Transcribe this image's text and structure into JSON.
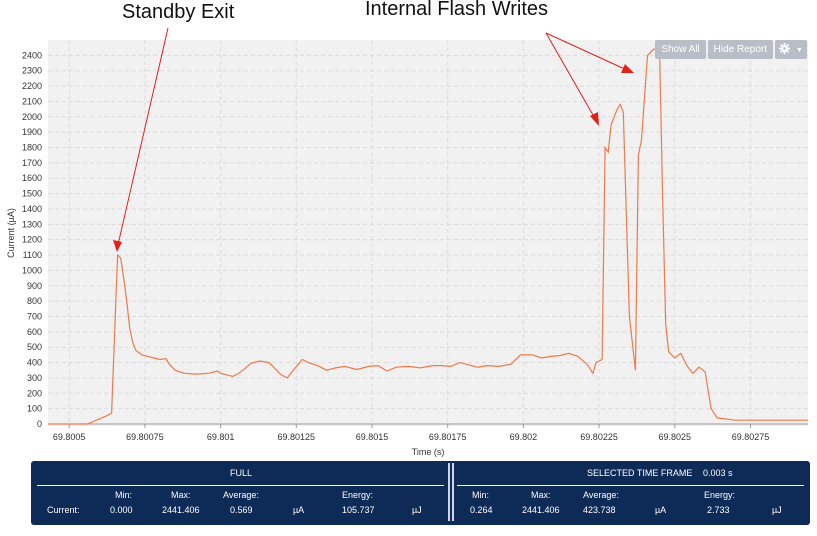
{
  "annotations": {
    "standby_exit": "Standby Exit",
    "flash_writes": "Internal Flash Writes"
  },
  "toolbar": {
    "show_all": "Show All",
    "hide_report": "Hide Report",
    "settings_icon": "gear-icon",
    "settings_caret": "▼"
  },
  "chart_data": {
    "type": "line",
    "xlabel": "Time (s)",
    "ylabel": "Current (µA)",
    "xlim": [
      69.80043,
      69.80294
    ],
    "ylim": [
      0,
      2500
    ],
    "x_ticks": [
      "69.8005",
      "69.80075",
      "69.801",
      "69.80125",
      "69.8015",
      "69.80175",
      "69.802",
      "69.80225",
      "69.8025",
      "69.80275"
    ],
    "y_ticks": [
      "0",
      "100",
      "200",
      "300",
      "400",
      "500",
      "600",
      "700",
      "800",
      "900",
      "1000",
      "1100",
      "1200",
      "1300",
      "1400",
      "1500",
      "1600",
      "1700",
      "1800",
      "1900",
      "2000",
      "2100",
      "2200",
      "2300",
      "2400"
    ],
    "grid": true,
    "line_color": "#f07a4a",
    "series": [
      {
        "points": [
          [
            69.80043,
            0
          ],
          [
            69.80056,
            0
          ],
          [
            69.80062,
            50
          ],
          [
            69.80064,
            70
          ],
          [
            69.80066,
            1100
          ],
          [
            69.80067,
            1080
          ],
          [
            69.80068,
            950
          ],
          [
            69.80069,
            800
          ],
          [
            69.8007,
            620
          ],
          [
            69.80071,
            530
          ],
          [
            69.80072,
            480
          ],
          [
            69.80074,
            450
          ],
          [
            69.80076,
            440
          ],
          [
            69.80078,
            430
          ],
          [
            69.8008,
            420
          ],
          [
            69.80082,
            425
          ],
          [
            69.80083,
            390
          ],
          [
            69.80085,
            350
          ],
          [
            69.80088,
            330
          ],
          [
            69.80092,
            325
          ],
          [
            69.80096,
            330
          ],
          [
            69.80099,
            345
          ],
          [
            69.801,
            330
          ],
          [
            69.80102,
            320
          ],
          [
            69.80104,
            310
          ],
          [
            69.80106,
            330
          ],
          [
            69.80108,
            360
          ],
          [
            69.8011,
            395
          ],
          [
            69.80113,
            410
          ],
          [
            69.80116,
            400
          ],
          [
            69.80118,
            360
          ],
          [
            69.8012,
            320
          ],
          [
            69.80122,
            300
          ],
          [
            69.80124,
            350
          ],
          [
            69.80127,
            420
          ],
          [
            69.80129,
            400
          ],
          [
            69.80132,
            380
          ],
          [
            69.80135,
            350
          ],
          [
            69.80138,
            365
          ],
          [
            69.80141,
            375
          ],
          [
            69.80145,
            355
          ],
          [
            69.80149,
            375
          ],
          [
            69.80152,
            380
          ],
          [
            69.80155,
            345
          ],
          [
            69.80158,
            370
          ],
          [
            69.80162,
            375
          ],
          [
            69.80166,
            365
          ],
          [
            69.8017,
            380
          ],
          [
            69.80173,
            380
          ],
          [
            69.80176,
            375
          ],
          [
            69.80179,
            400
          ],
          [
            69.80182,
            385
          ],
          [
            69.80185,
            370
          ],
          [
            69.80188,
            380
          ],
          [
            69.80192,
            375
          ],
          [
            69.80196,
            390
          ],
          [
            69.80199,
            450
          ],
          [
            69.80203,
            450
          ],
          [
            69.80206,
            430
          ],
          [
            69.80209,
            440
          ],
          [
            69.80212,
            445
          ],
          [
            69.80215,
            460
          ],
          [
            69.80218,
            440
          ],
          [
            69.80221,
            390
          ],
          [
            69.80223,
            330
          ],
          [
            69.80224,
            400
          ],
          [
            69.80226,
            420
          ],
          [
            69.80227,
            1800
          ],
          [
            69.80228,
            1770
          ],
          [
            69.80229,
            1950
          ],
          [
            69.80231,
            2050
          ],
          [
            69.80232,
            2080
          ],
          [
            69.80233,
            2030
          ],
          [
            69.80235,
            700
          ],
          [
            69.80237,
            350
          ],
          [
            69.80238,
            1750
          ],
          [
            69.80239,
            1850
          ],
          [
            69.80241,
            2400
          ],
          [
            69.80243,
            2441
          ],
          [
            69.80245,
            2430
          ],
          [
            69.80246,
            1450
          ],
          [
            69.80247,
            650
          ],
          [
            69.80248,
            470
          ],
          [
            69.8025,
            430
          ],
          [
            69.80252,
            460
          ],
          [
            69.80254,
            380
          ],
          [
            69.80256,
            330
          ],
          [
            69.80258,
            370
          ],
          [
            69.8026,
            340
          ],
          [
            69.80262,
            100
          ],
          [
            69.80264,
            40
          ],
          [
            69.8027,
            25
          ],
          [
            69.80294,
            25
          ]
        ]
      }
    ]
  },
  "report": {
    "full_label": "FULL",
    "selected_label": "SELECTED TIME FRAME",
    "selected_duration": "0.003 s",
    "row_label": "Current:",
    "headers": {
      "min": "Min:",
      "max": "Max:",
      "average": "Average:",
      "energy": "Energy:"
    },
    "full": {
      "min": "0.000",
      "max": "2441.406",
      "average": "0.569",
      "avg_unit": "µA",
      "energy": "105.737",
      "energy_unit": "µJ"
    },
    "selected": {
      "min": "0.264",
      "max": "2441.406",
      "average": "423.738",
      "avg_unit": "µA",
      "energy": "2.733",
      "energy_unit": "µJ"
    }
  }
}
